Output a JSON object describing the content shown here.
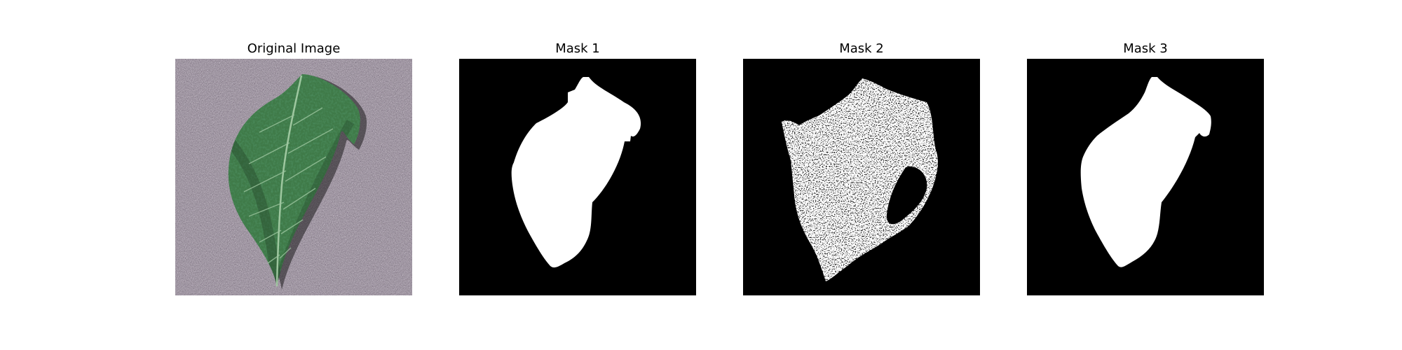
{
  "figure": {
    "panels": [
      {
        "title": "Original Image"
      },
      {
        "title": "Mask 1"
      },
      {
        "title": "Mask 2"
      },
      {
        "title": "Mask 3"
      }
    ]
  },
  "colors": {
    "background": "#ffffff",
    "mask_fg": "#ffffff",
    "mask_bg": "#000000",
    "leaf_dark": "#1f3d24",
    "leaf_mid": "#3f7a48",
    "leaf_light": "#7db386",
    "sand": "#8e8790"
  }
}
